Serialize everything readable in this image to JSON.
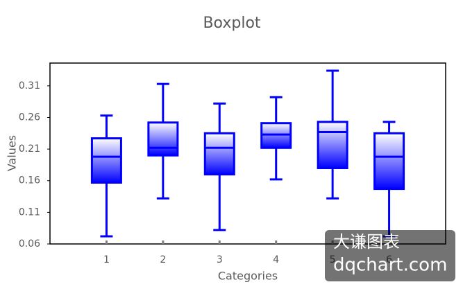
{
  "chart_data": {
    "type": "box",
    "title": "Boxplot",
    "x_label": "Categories",
    "y_label": "Values",
    "categories": [
      "1",
      "2",
      "3",
      "4",
      "5",
      "6"
    ],
    "min": [
      0.072,
      0.132,
      0.082,
      0.162,
      0.132,
      0.072
    ],
    "q1": [
      0.157,
      0.2,
      0.17,
      0.212,
      0.18,
      0.147
    ],
    "median": [
      0.198,
      0.212,
      0.212,
      0.233,
      0.237,
      0.198
    ],
    "q3": [
      0.227,
      0.252,
      0.235,
      0.251,
      0.253,
      0.235
    ],
    "max": [
      0.263,
      0.313,
      0.282,
      0.292,
      0.334,
      0.253
    ],
    "color": "#0000ff",
    "ylim": [
      0.06,
      0.346
    ],
    "yticks": [
      0.06,
      0.11,
      0.16,
      0.21,
      0.26,
      0.31
    ]
  },
  "watermark": {
    "line1": "大谦图表",
    "line2": "dqchart.com"
  }
}
